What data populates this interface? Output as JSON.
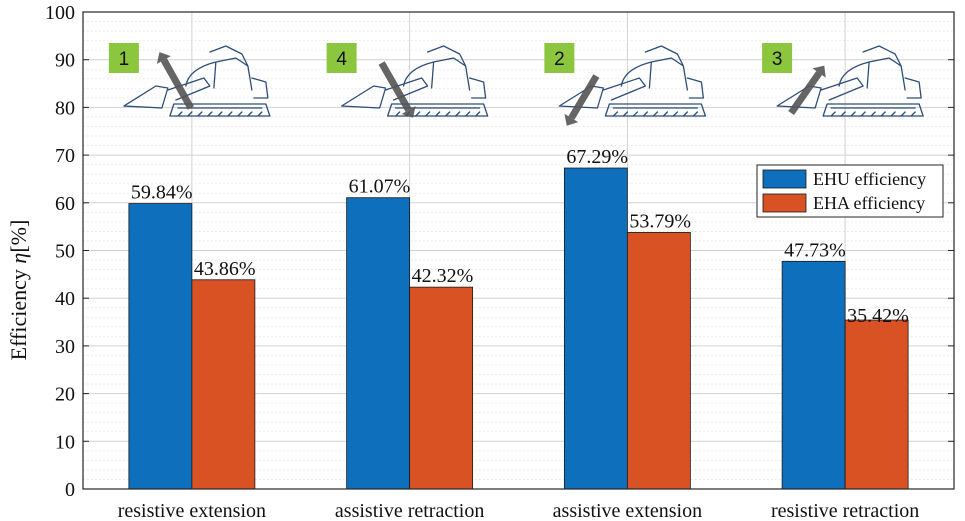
{
  "chart_data": {
    "type": "bar",
    "title": "",
    "xlabel": "",
    "ylabel": "Efficiency",
    "ylabel_symbol": "η",
    "ylabel_unit": "[%]",
    "ylim": [
      0,
      100
    ],
    "yticks": [
      0,
      10,
      20,
      30,
      40,
      50,
      60,
      70,
      80,
      90,
      100
    ],
    "grid": true,
    "categories": [
      "resistive extension",
      "assistive retraction",
      "assistive extension",
      "resistive retraction"
    ],
    "quadrant_badges": [
      "1",
      "4",
      "2",
      "3"
    ],
    "series": [
      {
        "name": "EHU efficiency",
        "color": "#0e6fbd",
        "values": [
          59.84,
          61.07,
          67.29,
          47.73
        ],
        "labels": [
          "59.84%",
          "61.07%",
          "67.29%",
          "47.73%"
        ]
      },
      {
        "name": "EHA efficiency",
        "color": "#d95224",
        "values": [
          43.86,
          42.32,
          53.79,
          35.42
        ],
        "labels": [
          "43.86%",
          "42.32%",
          "53.79%",
          "35.42%"
        ]
      }
    ],
    "legend_position": "right",
    "badge_color": "#8cc63f",
    "arrow_color": "#555555"
  }
}
